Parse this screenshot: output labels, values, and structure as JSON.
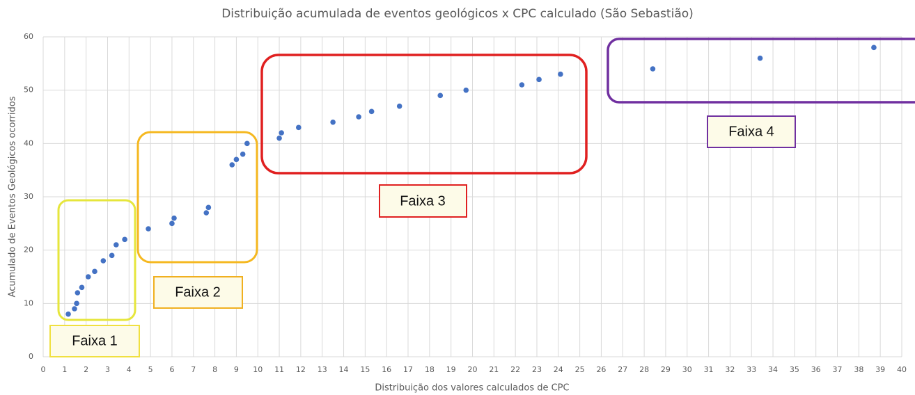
{
  "chart_data": {
    "type": "scatter",
    "title": "Distribuição acumulada de eventos geológicos x CPC calculado (São Sebastião)",
    "x_label": "Distribuição dos valores calculados de CPC",
    "y_label": "Acumulado de Eventos Geológicos ocorridos",
    "annotations": [
      "Faixa 1",
      "Faixa 2",
      "Faixa 3",
      "Faixa 4"
    ],
    "series": [
      {
        "color": "#4472c4",
        "x": [
          1.17,
          1.46,
          1.56,
          1.6,
          1.8,
          2.1,
          2.4,
          2.8,
          3.2,
          3.4,
          3.8,
          4.9,
          6.0,
          6.1,
          7.6,
          7.7,
          8.8,
          9.0,
          9.3,
          9.5,
          11.0,
          11.1,
          11.9,
          13.5,
          14.7,
          15.3,
          16.6,
          18.5,
          19.7,
          22.3,
          23.1,
          24.1,
          28.4,
          33.4,
          38.7
        ],
        "values": [
          8,
          9,
          10,
          12,
          13,
          15,
          16,
          18,
          19,
          21,
          22,
          24,
          25,
          26,
          27,
          28,
          36,
          37,
          38,
          40,
          41,
          42,
          43,
          44,
          45,
          46,
          47,
          49,
          50,
          51,
          52,
          53,
          54,
          56,
          58
        ]
      }
    ],
    "xlim": [
      0,
      40
    ],
    "xticks": [
      0,
      1,
      2,
      3,
      4,
      5,
      6,
      7,
      8,
      9,
      10,
      11,
      12,
      13,
      14,
      15,
      16,
      17,
      18,
      19,
      20,
      21,
      22,
      23,
      24,
      25,
      26,
      27,
      28,
      29,
      30,
      31,
      32,
      33,
      34,
      35,
      36,
      37,
      38,
      39,
      40
    ],
    "ylim": [
      0,
      60
    ],
    "yticks": [
      0,
      10,
      20,
      30,
      40,
      50,
      60
    ],
    "grid": true
  }
}
